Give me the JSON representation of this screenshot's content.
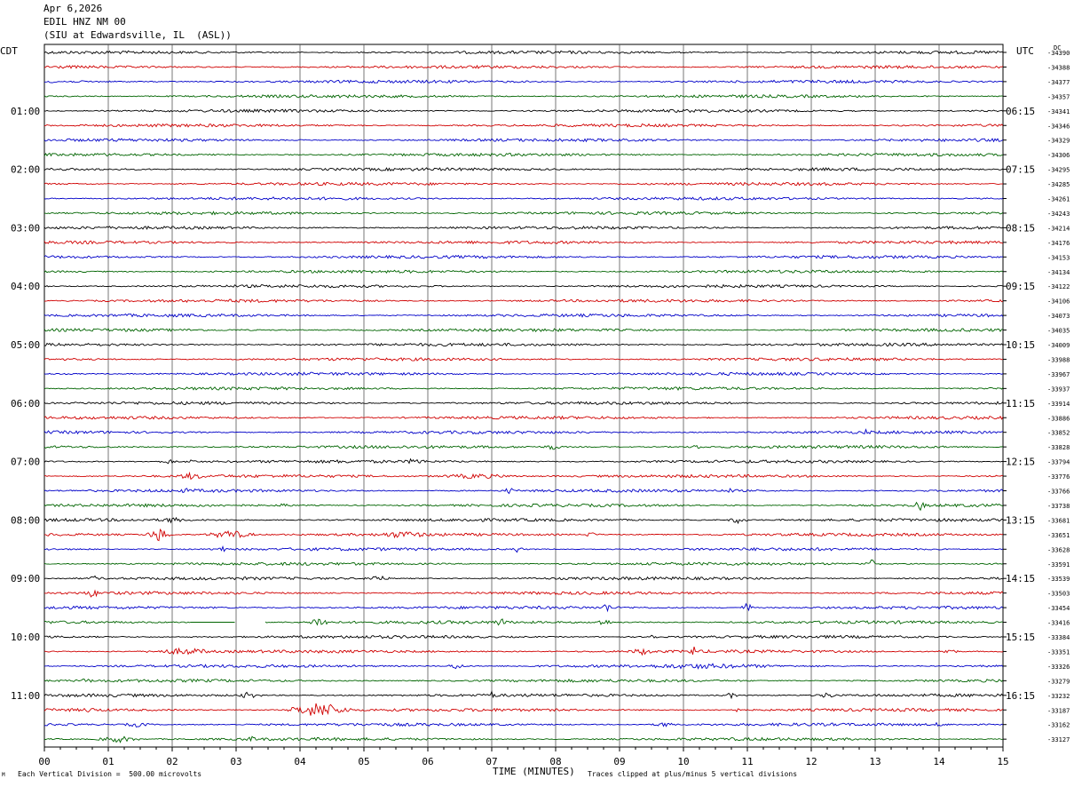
{
  "header": {
    "date": "Apr 6,2026",
    "station": "EDIL HNZ NM 00",
    "location": "(SIU at Edwardsville, IL  (ASL))"
  },
  "footer": {
    "scale_note": "Each Vertical Division =  500.00 microvolts",
    "clip_note": "Traces clipped at plus/minus 5 vertical divisions",
    "corner_mark": "M"
  },
  "chart_data": {
    "type": "line",
    "title": "",
    "xlabel": "TIME (MINUTES)",
    "x_ticks": [
      "00",
      "01",
      "02",
      "03",
      "04",
      "05",
      "06",
      "07",
      "08",
      "09",
      "10",
      "11",
      "12",
      "13",
      "14",
      "15"
    ],
    "xlim": [
      0,
      15
    ],
    "left_axis_label": "CDT",
    "right_axis_label": "UTC",
    "dc_label": "DC",
    "trace_count": 48,
    "trace_colors": [
      "#000000",
      "#d00000",
      "#0000c8",
      "#006400"
    ],
    "left_hour_labels": [
      "01:00",
      "02:00",
      "03:00",
      "04:00",
      "05:00",
      "06:00",
      "07:00",
      "08:00",
      "09:00",
      "10:00",
      "11:00"
    ],
    "right_hour_labels": [
      "06:15",
      "07:15",
      "08:15",
      "09:15",
      "10:15",
      "11:15",
      "12:15",
      "13:15",
      "14:15",
      "15:15",
      "16:15"
    ],
    "dc_offsets": [
      "-34390",
      "-34388",
      "-34377",
      "-34357",
      "-34341",
      "-34346",
      "-34329",
      "-34306",
      "-34295",
      "-34285",
      "-34261",
      "-34243",
      "-34214",
      "-34176",
      "-34153",
      "-34134",
      "-34122",
      "-34106",
      "-34073",
      "-34035",
      "-34009",
      "-33988",
      "-33967",
      "-33937",
      "-33914",
      "-33886",
      "-33852",
      "-33828",
      "-33794",
      "-33776",
      "-33766",
      "-33738",
      "-33681",
      "-33651",
      "-33628",
      "-33591",
      "-33539",
      "-33503",
      "-33454",
      "-33416",
      "-33384",
      "-33351",
      "-33326",
      "-33279",
      "-33232",
      "-33187",
      "-33162",
      "-33127"
    ],
    "grid": true
  }
}
